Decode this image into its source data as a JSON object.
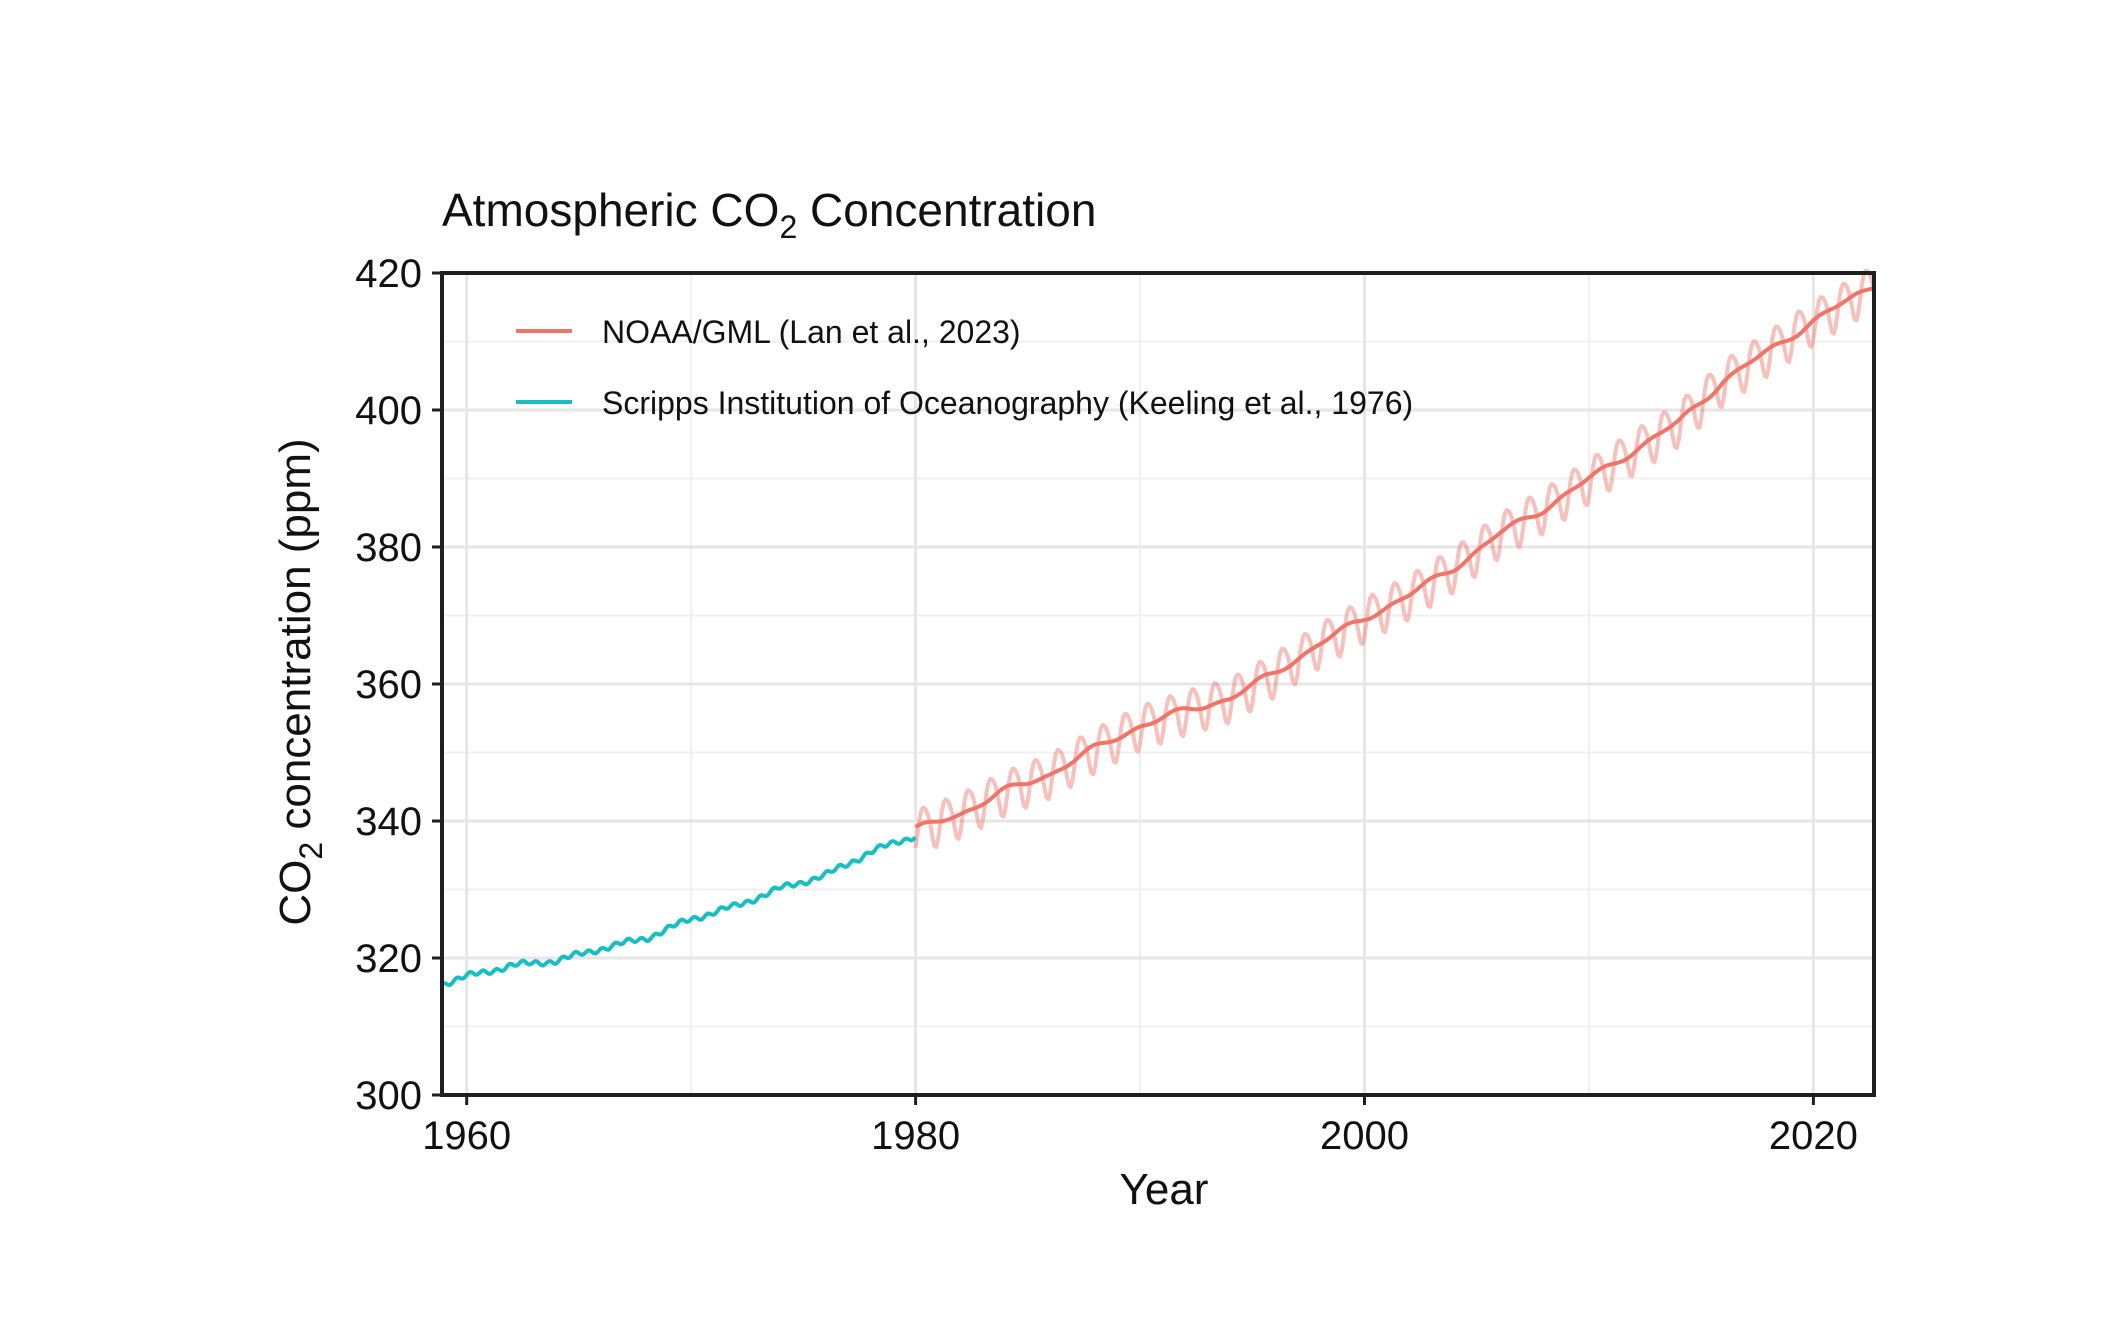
{
  "chart_data": {
    "type": "line",
    "title": "Atmospheric CO",
    "title_subscript": "2",
    "title_suffix": " Concentration",
    "xlabel": "Year",
    "ylabel_prefix": "CO",
    "ylabel_subscript": "2",
    "ylabel_suffix": " concentration (ppm)",
    "xlim": [
      1958.9,
      2022.7
    ],
    "ylim": [
      300,
      420
    ],
    "x_ticks": [
      1960,
      1980,
      2000,
      2020
    ],
    "y_ticks": [
      300,
      320,
      340,
      360,
      380,
      400,
      420
    ],
    "x_tick_labels": [
      "1960",
      "1980",
      "2000",
      "2020"
    ],
    "y_tick_labels": [
      "300",
      "320",
      "340",
      "360",
      "380",
      "400",
      "420"
    ],
    "grid": true,
    "legend_position": "top-left",
    "series": [
      {
        "name": "NOAA/GML (Lan et al., 2023)",
        "color": "#F07468",
        "style": "trend line with lighter seasonal monthly cycle",
        "seasonal_amplitude_ppm": 3.2,
        "x": [
          1980,
          1982,
          1984,
          1986,
          1988,
          1990,
          1992,
          1994,
          1996,
          1998,
          2000,
          2002,
          2004,
          2006,
          2008,
          2010,
          2012,
          2014,
          2016,
          2018,
          2020,
          2022.7
        ],
        "values": [
          338.7,
          341.1,
          344.4,
          346.9,
          350.6,
          353.9,
          356.1,
          357.9,
          361.6,
          365.9,
          369.6,
          373.0,
          377.0,
          381.9,
          385.6,
          389.9,
          394.1,
          398.2,
          404.3,
          408.6,
          413.0,
          418.2
        ]
      },
      {
        "name": "Scripps Institution of Oceanography (Keeling et al., 1976)",
        "color": "#17BEC4",
        "style": "monthly line",
        "x": [
          1958.9,
          1960,
          1962,
          1964,
          1966,
          1968,
          1970,
          1972,
          1974,
          1976,
          1978,
          1980
        ],
        "values": [
          316.2,
          317.3,
          318.9,
          319.6,
          321.4,
          322.9,
          325.7,
          327.6,
          330.2,
          332.1,
          335.5,
          337.9
        ]
      }
    ]
  }
}
